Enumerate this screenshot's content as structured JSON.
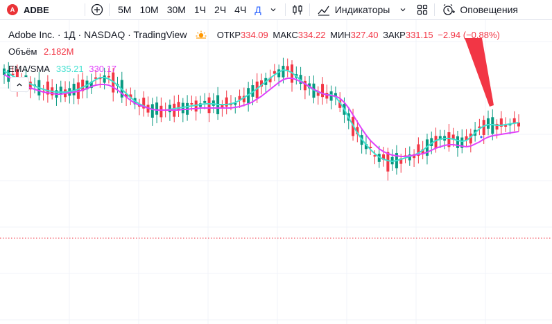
{
  "toolbar": {
    "symbol": "ADBE",
    "logo_letter": "A",
    "intervals": [
      {
        "label": "5M",
        "active": false
      },
      {
        "label": "10M",
        "active": false
      },
      {
        "label": "30M",
        "active": false
      },
      {
        "label": "1Ч",
        "active": false
      },
      {
        "label": "2Ч",
        "active": false
      },
      {
        "label": "4Ч",
        "active": false
      },
      {
        "label": "Д",
        "active": true
      }
    ],
    "indicators_label": "Индикаторы",
    "alerts_label": "Оповещения"
  },
  "legend": {
    "title": "Adobe Inc. · 1Д · NASDAQ · TradingView",
    "open_label": "ОТКР",
    "open": "334.09",
    "high_label": "МАКС",
    "high": "334.22",
    "low_label": "МИН",
    "low": "327.40",
    "close_label": "ЗАКР",
    "close": "331.15",
    "change": "−2.94 (−0.88%)",
    "volume_label": "Объём",
    "volume": "2.182M",
    "ma_label": "EMA/SMA",
    "ema": "335.21",
    "sma": "330.17"
  },
  "colors": {
    "up": "#089981",
    "down": "#f23645",
    "ema": "#40e0d0",
    "sma": "#e040fb",
    "arrow": "#f23645",
    "last_price_line": "#f23645",
    "grid": "#f0f3fa"
  },
  "chart_data": {
    "type": "candlestick",
    "price_range": [
      300,
      370
    ],
    "last_price": 331.15,
    "series": [
      {
        "name": "EMA",
        "values": [
          365,
          362,
          358,
          355,
          352,
          349,
          347,
          344,
          341,
          339,
          337,
          336,
          335,
          335,
          335,
          336,
          337,
          339,
          342,
          345,
          349,
          353,
          356,
          356,
          354,
          350,
          345,
          339,
          333,
          327,
          322,
          318,
          315,
          312,
          310,
          309,
          309,
          309,
          310,
          311,
          312,
          313,
          314,
          315,
          316,
          317,
          318,
          318,
          318,
          317,
          317,
          317,
          318,
          320,
          323,
          327,
          331,
          335,
          340,
          345,
          350,
          355,
          360,
          364,
          367,
          366,
          363,
          358,
          352,
          347,
          342,
          338,
          335,
          333,
          331,
          331,
          328,
          320,
          310,
          298,
          287,
          276,
          267,
          259,
          252,
          246,
          241,
          238,
          236,
          235,
          236,
          238,
          240,
          242,
          244,
          247,
          251,
          256,
          261,
          265,
          267,
          268,
          268,
          267,
          265,
          264,
          265,
          270,
          276,
          282,
          286,
          288,
          288,
          287,
          287,
          288,
          289,
          290,
          291
        ]
      },
      {
        "name": "SMA",
        "values": [
          360,
          357,
          353,
          350,
          347,
          344,
          341,
          339,
          337,
          335,
          334,
          333,
          332,
          332,
          333,
          334,
          335,
          336,
          338,
          340,
          343,
          345,
          346,
          346,
          345,
          342,
          338,
          333,
          328,
          323,
          319,
          316,
          314,
          312,
          310,
          309,
          309,
          309,
          309,
          309,
          309,
          310,
          310,
          311,
          311,
          312,
          312,
          312,
          312,
          312,
          312,
          312,
          312,
          313,
          314,
          316,
          318,
          321,
          325,
          329,
          334,
          339,
          344,
          349,
          353,
          355,
          355,
          353,
          350,
          347,
          343,
          339,
          336,
          333,
          331,
          330,
          329,
          326,
          320,
          312,
          302,
          292,
          282,
          273,
          265,
          259,
          253,
          249,
          246,
          244,
          243,
          242,
          242,
          243,
          244,
          245,
          246,
          248,
          251,
          254,
          256,
          258,
          259,
          259,
          258,
          257,
          256,
          257,
          260,
          263,
          267,
          270,
          272,
          273,
          274,
          275,
          276,
          277,
          278
        ]
      }
    ]
  }
}
